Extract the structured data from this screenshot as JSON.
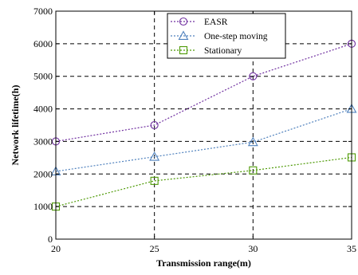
{
  "chart_data": {
    "type": "line",
    "x": [
      20,
      25,
      30,
      35
    ],
    "xticks": [
      "20",
      "25",
      "30",
      "35"
    ],
    "yticks": [
      "0",
      "1000",
      "2000",
      "3000",
      "4000",
      "5000",
      "6000",
      "7000"
    ],
    "xlim": [
      20,
      35
    ],
    "ylim": [
      0,
      7000
    ],
    "xlabel": "Transmission range(m)",
    "ylabel": "Network lifetime(h)",
    "grid": true,
    "legend_position": "top-center",
    "series": [
      {
        "name": "EASR",
        "values": [
          3000,
          3500,
          5000,
          6000
        ],
        "color": "#7030a0",
        "marker": "circle"
      },
      {
        "name": "One-step moving",
        "values": [
          2080,
          2530,
          2980,
          4000
        ],
        "color": "#4f81bd",
        "marker": "triangle"
      },
      {
        "name": "Stationary",
        "values": [
          1000,
          1790,
          2110,
          2510
        ],
        "color": "#4e9a06",
        "marker": "square"
      }
    ]
  }
}
